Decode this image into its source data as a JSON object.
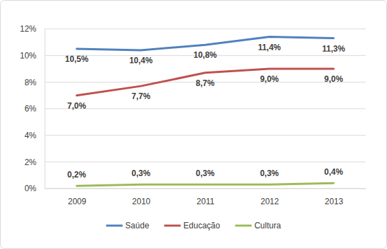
{
  "chart_data": {
    "type": "line",
    "categories": [
      "2009",
      "2010",
      "2011",
      "2012",
      "2013"
    ],
    "series": [
      {
        "name": "Saúde",
        "color": "#4f81bd",
        "values": [
          10.5,
          10.4,
          10.8,
          11.4,
          11.3
        ],
        "value_labels": [
          "10,5%",
          "10,4%",
          "10,8%",
          "11,4%",
          "11,3%"
        ]
      },
      {
        "name": "Educação",
        "color": "#c0504d",
        "values": [
          7.0,
          7.7,
          8.7,
          9.0,
          9.0
        ],
        "value_labels": [
          "7,0%",
          "7,7%",
          "8,7%",
          "9,0%",
          "9,0%"
        ]
      },
      {
        "name": "Cultura",
        "color": "#9bbb59",
        "values": [
          0.2,
          0.3,
          0.3,
          0.3,
          0.4
        ],
        "value_labels": [
          "0,2%",
          "0,3%",
          "0,3%",
          "0,3%",
          "0,4%"
        ]
      }
    ],
    "ylim": [
      0,
      12
    ],
    "yticks": [
      {
        "value": 0,
        "label": "0%"
      },
      {
        "value": 2,
        "label": "2%"
      },
      {
        "value": 4,
        "label": "4%"
      },
      {
        "value": 6,
        "label": "6%"
      },
      {
        "value": 8,
        "label": "8%"
      },
      {
        "value": 10,
        "label": "10%"
      },
      {
        "value": 12,
        "label": "12%"
      }
    ],
    "grid": true,
    "legend": "bottom",
    "data_labels": true
  }
}
